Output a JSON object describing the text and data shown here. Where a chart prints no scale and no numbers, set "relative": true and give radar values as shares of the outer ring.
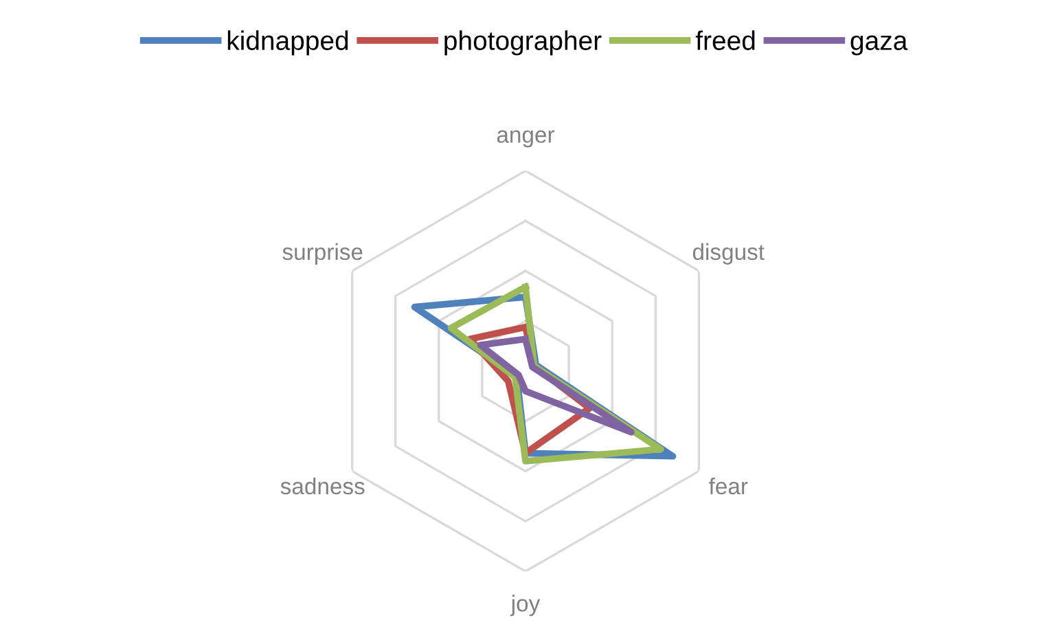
{
  "chart_data": {
    "type": "radar",
    "relative": true,
    "grid": true,
    "legend": "top",
    "categories": [
      "anger",
      "disgust",
      "fear",
      "joy",
      "sadness",
      "surprise"
    ],
    "series": [
      {
        "name": "kidnapped",
        "color": "#4f81bd",
        "values": [
          0.37,
          0.06,
          0.85,
          0.41,
          0.05,
          0.64
        ]
      },
      {
        "name": "photographer",
        "color": "#c0504d",
        "values": [
          0.22,
          0.05,
          0.37,
          0.41,
          0.1,
          0.32
        ]
      },
      {
        "name": "freed",
        "color": "#9bbb59",
        "values": [
          0.42,
          0.05,
          0.78,
          0.45,
          0.06,
          0.43
        ]
      },
      {
        "name": "gaza",
        "color": "#8064a2",
        "values": [
          0.16,
          0.04,
          0.61,
          0.1,
          0.04,
          0.26
        ]
      }
    ]
  }
}
